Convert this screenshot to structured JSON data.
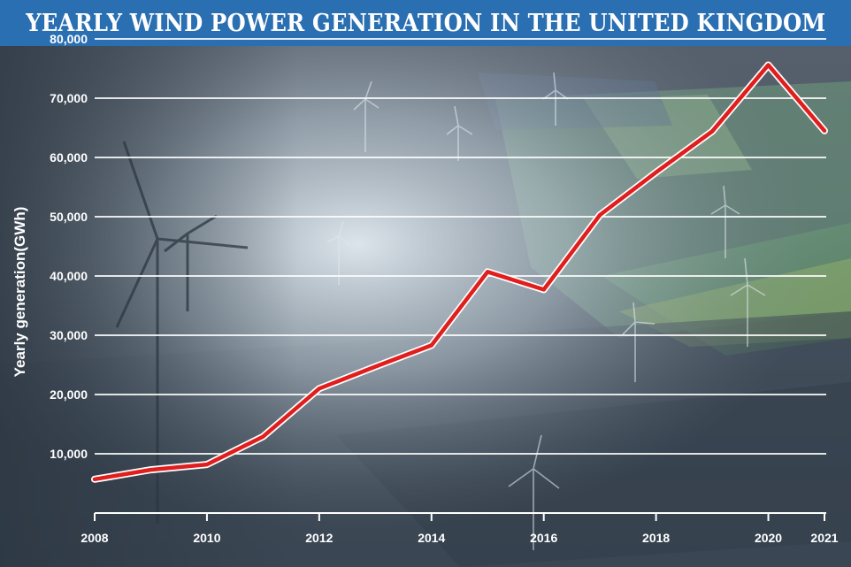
{
  "header": {
    "title": "YEARLY WIND POWER GENERATION IN THE UNITED KINGDOM"
  },
  "colors": {
    "title_bar": "#2a6fb1",
    "line": "#e01e1e",
    "grid": "#ffffff",
    "text": "#ffffff"
  },
  "chart_data": {
    "type": "line",
    "title": "YEARLY WIND POWER GENERATION IN THE UNITED KINGDOM",
    "xlabel": "",
    "ylabel": "Yearly generation(GWh)",
    "x": [
      2008,
      2009,
      2010,
      2011,
      2012,
      2013,
      2014,
      2015,
      2016,
      2017,
      2018,
      2019,
      2020,
      2021
    ],
    "series": [
      {
        "values": [
          5700,
          7300,
          8200,
          12900,
          21000,
          24700,
          28300,
          40700,
          37700,
          50300,
          57500,
          64400,
          75600,
          64500
        ]
      }
    ],
    "xticks": [
      "2008",
      "2010",
      "2012",
      "2014",
      "2016",
      "2018",
      "2020",
      "2021"
    ],
    "yticks": [
      "10,000",
      "20,000",
      "30,000",
      "40,000",
      "50,000",
      "60,000",
      "70,000",
      "80,000"
    ],
    "ytick_values": [
      10000,
      20000,
      30000,
      40000,
      50000,
      60000,
      70000,
      80000
    ],
    "xlim": [
      2008,
      2021
    ],
    "ylim": [
      0,
      80000
    ],
    "grid": true,
    "legend": "none"
  }
}
